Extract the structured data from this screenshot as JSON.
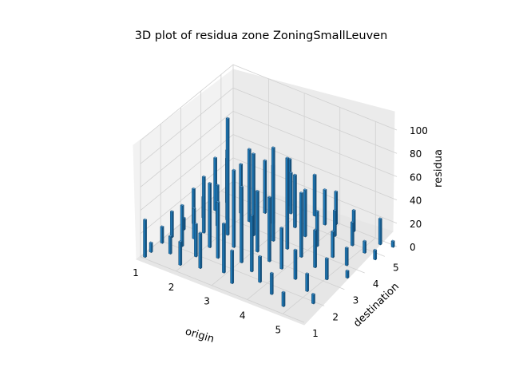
{
  "chart_data": {
    "type": "bar3d",
    "title": "3D plot of residua zone ZoningSmallLeuven",
    "xlabel": "origin",
    "ylabel": "destination",
    "zlabel": "residua",
    "x_ticks": [
      "1",
      "2",
      "3",
      "4",
      "5"
    ],
    "y_ticks": [
      "1",
      "2",
      "3",
      "4",
      "5"
    ],
    "z_ticks": [
      "0",
      "20",
      "40",
      "60",
      "80",
      "100"
    ],
    "xlim": [
      1,
      5.6
    ],
    "ylim": [
      1,
      5.6
    ],
    "zlim": [
      0,
      100
    ],
    "grid": true,
    "bar_color": "#1f77b4",
    "note_bars": "heights estimated; dense field of thin bars",
    "bars": [
      {
        "x": 1.05,
        "y": 1.05,
        "z": 32
      },
      {
        "x": 1.05,
        "y": 1.35,
        "z": 8
      },
      {
        "x": 1.05,
        "y": 1.9,
        "z": 14
      },
      {
        "x": 1.1,
        "y": 2.3,
        "z": 22
      },
      {
        "x": 1.15,
        "y": 2.8,
        "z": 10
      },
      {
        "x": 1.2,
        "y": 3.2,
        "z": 30
      },
      {
        "x": 1.25,
        "y": 3.6,
        "z": 18
      },
      {
        "x": 1.3,
        "y": 4.1,
        "z": 45
      },
      {
        "x": 1.35,
        "y": 4.6,
        "z": 38
      },
      {
        "x": 1.45,
        "y": 1.6,
        "z": 15
      },
      {
        "x": 1.5,
        "y": 2.1,
        "z": 35
      },
      {
        "x": 1.55,
        "y": 2.6,
        "z": 26
      },
      {
        "x": 1.6,
        "y": 3.0,
        "z": 48
      },
      {
        "x": 1.7,
        "y": 3.5,
        "z": 35
      },
      {
        "x": 1.75,
        "y": 3.9,
        "z": 60
      },
      {
        "x": 1.85,
        "y": 4.4,
        "z": 42
      },
      {
        "x": 1.9,
        "y": 1.3,
        "z": 20
      },
      {
        "x": 2.0,
        "y": 1.9,
        "z": 28
      },
      {
        "x": 2.05,
        "y": 2.5,
        "z": 55
      },
      {
        "x": 2.1,
        "y": 3.3,
        "z": 100
      },
      {
        "x": 2.2,
        "y": 4.2,
        "z": 62
      },
      {
        "x": 2.3,
        "y": 4.8,
        "z": 45
      },
      {
        "x": 2.35,
        "y": 1.5,
        "z": 30
      },
      {
        "x": 2.45,
        "y": 2.2,
        "z": 48
      },
      {
        "x": 2.5,
        "y": 2.9,
        "z": 66
      },
      {
        "x": 2.6,
        "y": 3.7,
        "z": 70
      },
      {
        "x": 2.7,
        "y": 4.5,
        "z": 50
      },
      {
        "x": 2.8,
        "y": 5.2,
        "z": 35
      },
      {
        "x": 2.9,
        "y": 1.7,
        "z": 42
      },
      {
        "x": 3.0,
        "y": 2.4,
        "z": 65
      },
      {
        "x": 3.05,
        "y": 3.1,
        "z": 52
      },
      {
        "x": 3.1,
        "y": 3.8,
        "z": 80
      },
      {
        "x": 3.2,
        "y": 4.7,
        "z": 45
      },
      {
        "x": 3.3,
        "y": 1.4,
        "z": 28
      },
      {
        "x": 3.4,
        "y": 2.2,
        "z": 48
      },
      {
        "x": 3.5,
        "y": 2.9,
        "z": 55
      },
      {
        "x": 3.55,
        "y": 3.7,
        "z": 78
      },
      {
        "x": 3.6,
        "y": 4.5,
        "z": 40
      },
      {
        "x": 3.7,
        "y": 5.3,
        "z": 30
      },
      {
        "x": 3.8,
        "y": 1.9,
        "z": 22
      },
      {
        "x": 3.9,
        "y": 2.8,
        "z": 35
      },
      {
        "x": 4.0,
        "y": 3.6,
        "z": 55
      },
      {
        "x": 4.05,
        "y": 4.3,
        "z": 30
      },
      {
        "x": 4.15,
        "y": 5.0,
        "z": 22
      },
      {
        "x": 4.3,
        "y": 1.6,
        "z": 18
      },
      {
        "x": 4.4,
        "y": 2.6,
        "z": 25
      },
      {
        "x": 4.5,
        "y": 3.4,
        "z": 32
      },
      {
        "x": 4.6,
        "y": 4.1,
        "z": 22
      },
      {
        "x": 4.7,
        "y": 4.9,
        "z": 20
      },
      {
        "x": 4.8,
        "y": 1.3,
        "z": 12
      },
      {
        "x": 4.9,
        "y": 2.3,
        "z": 15
      },
      {
        "x": 5.0,
        "y": 3.1,
        "z": 18
      },
      {
        "x": 5.05,
        "y": 4.0,
        "z": 15
      },
      {
        "x": 5.1,
        "y": 4.8,
        "z": 10
      },
      {
        "x": 5.2,
        "y": 5.4,
        "z": 22
      },
      {
        "x": 5.3,
        "y": 1.9,
        "z": 8
      },
      {
        "x": 5.35,
        "y": 3.5,
        "z": 6
      },
      {
        "x": 5.45,
        "y": 4.7,
        "z": 8
      },
      {
        "x": 5.5,
        "y": 5.5,
        "z": 5
      },
      {
        "x": 4.4,
        "y": 5.5,
        "z": 18
      },
      {
        "x": 3.9,
        "y": 5.5,
        "z": 28
      },
      {
        "x": 3.3,
        "y": 5.5,
        "z": 35
      },
      {
        "x": 2.6,
        "y": 5.5,
        "z": 40
      }
    ]
  }
}
